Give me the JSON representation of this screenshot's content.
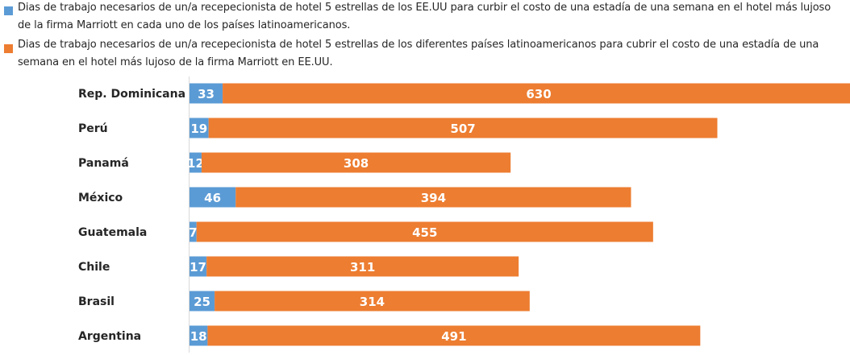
{
  "chart_data": {
    "type": "bar",
    "orientation": "horizontal",
    "stacked": true,
    "title": "",
    "xlabel": "",
    "ylabel": "",
    "legend_position": "top",
    "grid": false,
    "xlim": [
      0,
      700
    ],
    "categories": [
      "Rep. Dominicana",
      "Perú",
      "Panamá",
      "México",
      "Guatemala",
      "Chile",
      "Brasil",
      "Argentina"
    ],
    "series": [
      {
        "name": "Dias de trabajo necesarios de un/a recepecionista de hotel 5 estrellas de los EE.UU para curbir el costo de una estadía de una semana en el hotel más lujoso de la firma Marriott en cada uno de los países latinoamericanos.",
        "color": "#5B9BD5",
        "values": [
          33,
          19,
          12,
          46,
          7,
          17,
          25,
          18
        ]
      },
      {
        "name": "Dias de trabajo necesarios de un/a recepecionista de hotel 5 estrellas de los diferentes países latinoamericanos para cubrir el costo de una estadía de una semana en el hotel más lujoso de la firma Marriott en EE.UU.",
        "color": "#ED7D31",
        "values": [
          630,
          507,
          308,
          394,
          455,
          311,
          314,
          491
        ]
      }
    ]
  }
}
